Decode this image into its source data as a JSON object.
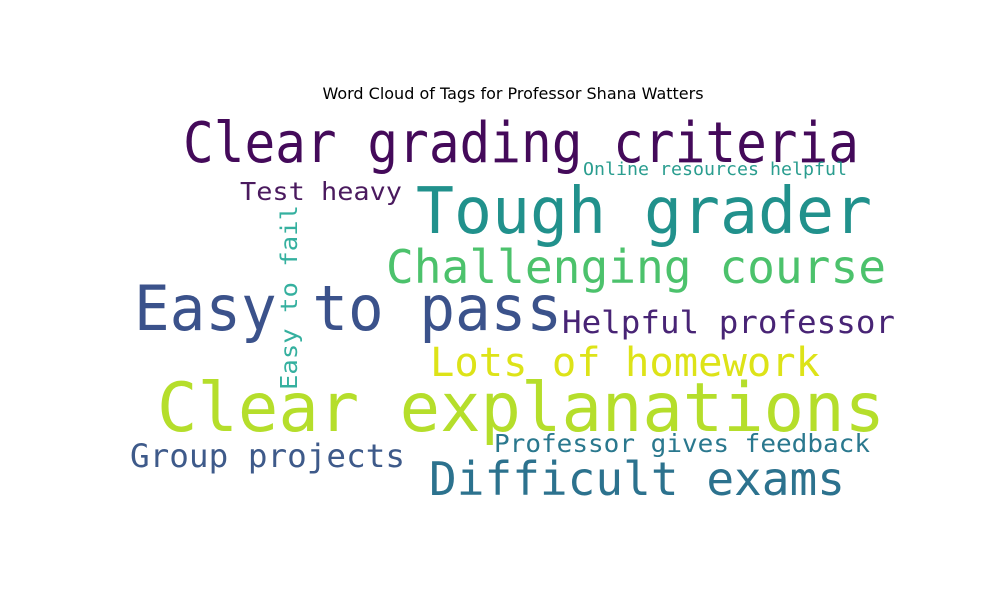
{
  "chart_data": {
    "type": "wordcloud",
    "title": "Word Cloud of Tags for Professor Shana Watters",
    "words": [
      {
        "text": "Clear grading criteria",
        "color": "#440a5a"
      },
      {
        "text": "Online resources helpful",
        "color": "#2a9d8f"
      },
      {
        "text": "Test heavy",
        "color": "#4a1a5e"
      },
      {
        "text": "Tough grader",
        "color": "#21918c"
      },
      {
        "text": "Easy to fail",
        "color": "#35b09f"
      },
      {
        "text": "Challenging course",
        "color": "#4cc26c"
      },
      {
        "text": "Easy to pass",
        "color": "#3b528b"
      },
      {
        "text": "Helpful professor",
        "color": "#482475"
      },
      {
        "text": "Lots of homework",
        "color": "#dde318"
      },
      {
        "text": "Clear explanations",
        "color": "#b5de2b"
      },
      {
        "text": "Professor gives feedback",
        "color": "#2a788e"
      },
      {
        "text": "Group projects",
        "color": "#3e5a8a"
      },
      {
        "text": "Difficult exams",
        "color": "#2c728e"
      }
    ]
  }
}
